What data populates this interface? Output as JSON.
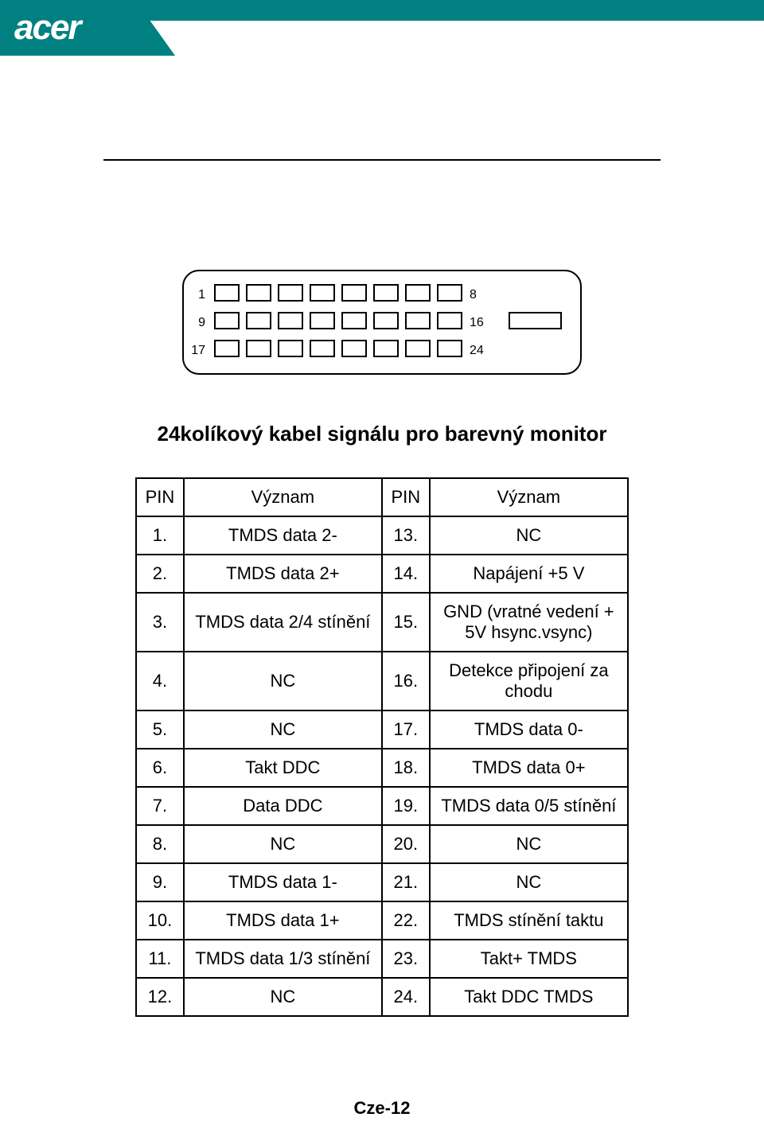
{
  "brand": "acer",
  "colors": {
    "teal": "#008080",
    "white": "#ffffff",
    "black": "#000000"
  },
  "connector": {
    "pin_labels_left": [
      "1",
      "9",
      "17"
    ],
    "pin_labels_right": [
      "8",
      "16",
      "24"
    ],
    "rows": 3,
    "cols": 8
  },
  "subtitle": "24kolíkový kabel signálu pro barevný monitor",
  "table": {
    "headers": [
      "PIN",
      "Význam",
      "PIN",
      "Význam"
    ],
    "rows": [
      [
        "1.",
        "TMDS data 2-",
        "13.",
        "NC"
      ],
      [
        "2.",
        "TMDS data 2+",
        "14.",
        "Napájení +5 V"
      ],
      [
        "3.",
        "TMDS data 2/4 stínění",
        "15.",
        "GND (vratné vedení + 5V hsync.vsync)"
      ],
      [
        "4.",
        "NC",
        "16.",
        "Detekce připojení za chodu"
      ],
      [
        "5.",
        "NC",
        "17.",
        "TMDS data 0-"
      ],
      [
        "6.",
        "Takt DDC",
        "18.",
        "TMDS data 0+"
      ],
      [
        "7.",
        "Data DDC",
        "19.",
        "TMDS data 0/5 stínění"
      ],
      [
        "8.",
        "NC",
        "20.",
        "NC"
      ],
      [
        "9.",
        "TMDS data 1-",
        "21.",
        "NC"
      ],
      [
        "10.",
        "TMDS data 1+",
        "22.",
        "TMDS stínění taktu"
      ],
      [
        "11.",
        "TMDS data 1/3 stínění",
        "23.",
        "Takt+ TMDS"
      ],
      [
        "12.",
        "NC",
        "24.",
        "Takt DDC TMDS"
      ]
    ]
  },
  "page_number": "Cze-12"
}
